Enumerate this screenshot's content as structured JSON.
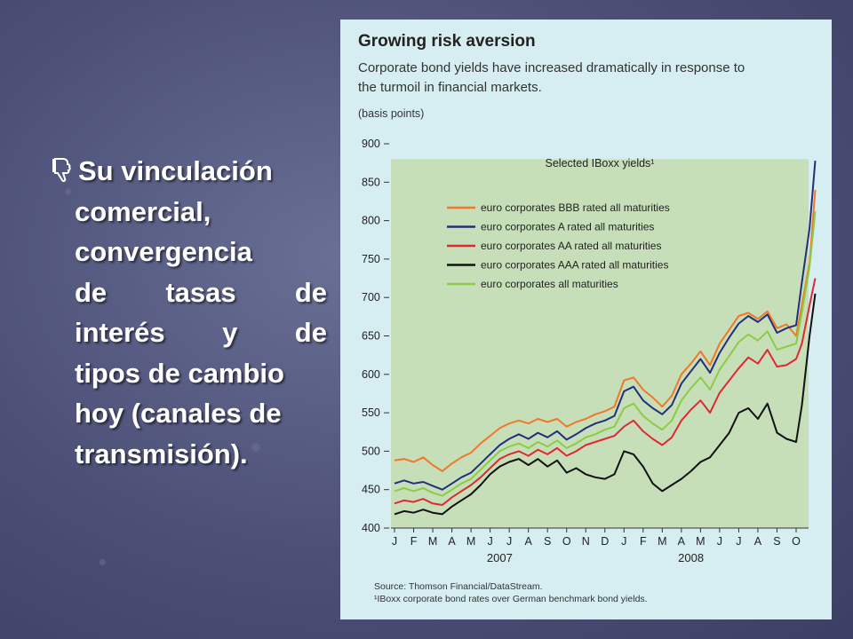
{
  "slide": {
    "bullet_icon": "thumbs-down-icon",
    "bullet_lines": [
      "Su vinculación",
      "comercial,",
      "convergencia",
      "de tasas de",
      "interés y de",
      "tipos de cambio",
      "hoy (canales de",
      "transmisión)."
    ]
  },
  "chart_data": {
    "type": "line",
    "title": "Growing risk aversion",
    "subtitle": "Corporate bond yields have increased dramatically in response to the turmoil in financial markets.",
    "ylabel": "(basis points)",
    "inner_title": "Selected IBoxx yields¹",
    "ylim": [
      400,
      900
    ],
    "yticks": [
      400,
      450,
      500,
      550,
      600,
      650,
      700,
      750,
      800,
      850,
      900
    ],
    "x_months": [
      "J",
      "F",
      "M",
      "A",
      "M",
      "J",
      "J",
      "A",
      "S",
      "O",
      "N",
      "D",
      "J",
      "F",
      "M",
      "A",
      "M",
      "J",
      "J",
      "A",
      "S",
      "O"
    ],
    "x_years": [
      {
        "label": "2007",
        "month_index": 5.5
      },
      {
        "label": "2008",
        "month_index": 15.5
      }
    ],
    "x_range": [
      0,
      21
    ],
    "source": "Source: Thomson Financial/DataStream.",
    "footnote": "¹IBoxx corporate bond rates over German benchmark bond yields.",
    "series": [
      {
        "name": "euro corporates BBB rated all maturities",
        "color": "#f07828",
        "points": [
          [
            0,
            488
          ],
          [
            0.5,
            490
          ],
          [
            1,
            486
          ],
          [
            1.5,
            492
          ],
          [
            2,
            482
          ],
          [
            2.5,
            474
          ],
          [
            3,
            484
          ],
          [
            3.5,
            492
          ],
          [
            4,
            498
          ],
          [
            4.5,
            510
          ],
          [
            5,
            520
          ],
          [
            5.5,
            530
          ],
          [
            6,
            536
          ],
          [
            6.5,
            540
          ],
          [
            7,
            536
          ],
          [
            7.5,
            542
          ],
          [
            8,
            538
          ],
          [
            8.5,
            542
          ],
          [
            9,
            532
          ],
          [
            9.5,
            538
          ],
          [
            10,
            542
          ],
          [
            10.5,
            548
          ],
          [
            11,
            552
          ],
          [
            11.5,
            558
          ],
          [
            12,
            592
          ],
          [
            12.5,
            596
          ],
          [
            13,
            580
          ],
          [
            13.5,
            570
          ],
          [
            14,
            558
          ],
          [
            14.5,
            572
          ],
          [
            15,
            600
          ],
          [
            15.5,
            614
          ],
          [
            16,
            630
          ],
          [
            16.5,
            612
          ],
          [
            17,
            640
          ],
          [
            17.5,
            658
          ],
          [
            18,
            676
          ],
          [
            18.5,
            680
          ],
          [
            19,
            672
          ],
          [
            19.5,
            682
          ],
          [
            20,
            660
          ],
          [
            20.5,
            665
          ],
          [
            21,
            650
          ],
          [
            21.3,
            690
          ],
          [
            21.7,
            745
          ],
          [
            22,
            840
          ]
        ]
      },
      {
        "name": "euro corporates A rated all maturities",
        "color": "#22307a",
        "points": [
          [
            0,
            458
          ],
          [
            0.5,
            462
          ],
          [
            1,
            458
          ],
          [
            1.5,
            460
          ],
          [
            2,
            455
          ],
          [
            2.5,
            450
          ],
          [
            3,
            458
          ],
          [
            3.5,
            466
          ],
          [
            4,
            472
          ],
          [
            4.5,
            484
          ],
          [
            5,
            496
          ],
          [
            5.5,
            508
          ],
          [
            6,
            516
          ],
          [
            6.5,
            522
          ],
          [
            7,
            516
          ],
          [
            7.5,
            524
          ],
          [
            8,
            518
          ],
          [
            8.5,
            526
          ],
          [
            9,
            515
          ],
          [
            9.5,
            522
          ],
          [
            10,
            530
          ],
          [
            10.5,
            536
          ],
          [
            11,
            540
          ],
          [
            11.5,
            546
          ],
          [
            12,
            578
          ],
          [
            12.5,
            584
          ],
          [
            13,
            566
          ],
          [
            13.5,
            556
          ],
          [
            14,
            548
          ],
          [
            14.5,
            560
          ],
          [
            15,
            588
          ],
          [
            15.5,
            604
          ],
          [
            16,
            620
          ],
          [
            16.5,
            602
          ],
          [
            17,
            628
          ],
          [
            17.5,
            648
          ],
          [
            18,
            666
          ],
          [
            18.5,
            676
          ],
          [
            19,
            668
          ],
          [
            19.5,
            678
          ],
          [
            20,
            654
          ],
          [
            20.5,
            660
          ],
          [
            21,
            664
          ],
          [
            21.3,
            720
          ],
          [
            21.7,
            790
          ],
          [
            22,
            878
          ]
        ]
      },
      {
        "name": "euro corporates AA rated all maturities",
        "color": "#e02830",
        "points": [
          [
            0,
            432
          ],
          [
            0.5,
            436
          ],
          [
            1,
            434
          ],
          [
            1.5,
            438
          ],
          [
            2,
            432
          ],
          [
            2.5,
            430
          ],
          [
            3,
            440
          ],
          [
            3.5,
            448
          ],
          [
            4,
            456
          ],
          [
            4.5,
            466
          ],
          [
            5,
            478
          ],
          [
            5.5,
            490
          ],
          [
            6,
            496
          ],
          [
            6.5,
            500
          ],
          [
            7,
            494
          ],
          [
            7.5,
            502
          ],
          [
            8,
            496
          ],
          [
            8.5,
            504
          ],
          [
            9,
            494
          ],
          [
            9.5,
            500
          ],
          [
            10,
            508
          ],
          [
            10.5,
            512
          ],
          [
            11,
            516
          ],
          [
            11.5,
            520
          ],
          [
            12,
            532
          ],
          [
            12.5,
            540
          ],
          [
            13,
            526
          ],
          [
            13.5,
            516
          ],
          [
            14,
            508
          ],
          [
            14.5,
            518
          ],
          [
            15,
            540
          ],
          [
            15.5,
            554
          ],
          [
            16,
            566
          ],
          [
            16.5,
            550
          ],
          [
            17,
            576
          ],
          [
            17.5,
            592
          ],
          [
            18,
            608
          ],
          [
            18.5,
            622
          ],
          [
            19,
            614
          ],
          [
            19.5,
            632
          ],
          [
            20,
            610
          ],
          [
            20.5,
            612
          ],
          [
            21,
            620
          ],
          [
            21.3,
            640
          ],
          [
            21.7,
            690
          ],
          [
            22,
            725
          ]
        ]
      },
      {
        "name": "euro corporates AAA rated all maturities",
        "color": "#111111",
        "points": [
          [
            0,
            418
          ],
          [
            0.5,
            422
          ],
          [
            1,
            420
          ],
          [
            1.5,
            424
          ],
          [
            2,
            420
          ],
          [
            2.5,
            418
          ],
          [
            3,
            428
          ],
          [
            3.5,
            436
          ],
          [
            4,
            444
          ],
          [
            4.5,
            456
          ],
          [
            5,
            470
          ],
          [
            5.5,
            480
          ],
          [
            6,
            486
          ],
          [
            6.5,
            490
          ],
          [
            7,
            482
          ],
          [
            7.5,
            490
          ],
          [
            8,
            480
          ],
          [
            8.5,
            488
          ],
          [
            9,
            472
          ],
          [
            9.5,
            478
          ],
          [
            10,
            470
          ],
          [
            10.5,
            466
          ],
          [
            11,
            464
          ],
          [
            11.5,
            470
          ],
          [
            12,
            500
          ],
          [
            12.5,
            496
          ],
          [
            13,
            480
          ],
          [
            13.5,
            458
          ],
          [
            14,
            448
          ],
          [
            14.5,
            456
          ],
          [
            15,
            464
          ],
          [
            15.5,
            474
          ],
          [
            16,
            486
          ],
          [
            16.5,
            492
          ],
          [
            17,
            508
          ],
          [
            17.5,
            524
          ],
          [
            18,
            550
          ],
          [
            18.5,
            556
          ],
          [
            19,
            542
          ],
          [
            19.5,
            562
          ],
          [
            20,
            524
          ],
          [
            20.5,
            516
          ],
          [
            21,
            512
          ],
          [
            21.3,
            560
          ],
          [
            21.7,
            650
          ],
          [
            22,
            705
          ]
        ]
      },
      {
        "name": "euro corporates all maturities",
        "color": "#8ccc44",
        "points": [
          [
            0,
            448
          ],
          [
            0.5,
            452
          ],
          [
            1,
            448
          ],
          [
            1.5,
            452
          ],
          [
            2,
            446
          ],
          [
            2.5,
            442
          ],
          [
            3,
            450
          ],
          [
            3.5,
            458
          ],
          [
            4,
            464
          ],
          [
            4.5,
            476
          ],
          [
            5,
            488
          ],
          [
            5.5,
            500
          ],
          [
            6,
            506
          ],
          [
            6.5,
            510
          ],
          [
            7,
            504
          ],
          [
            7.5,
            512
          ],
          [
            8,
            506
          ],
          [
            8.5,
            514
          ],
          [
            9,
            504
          ],
          [
            9.5,
            510
          ],
          [
            10,
            518
          ],
          [
            10.5,
            522
          ],
          [
            11,
            528
          ],
          [
            11.5,
            532
          ],
          [
            12,
            556
          ],
          [
            12.5,
            562
          ],
          [
            13,
            546
          ],
          [
            13.5,
            536
          ],
          [
            14,
            528
          ],
          [
            14.5,
            540
          ],
          [
            15,
            566
          ],
          [
            15.5,
            582
          ],
          [
            16,
            596
          ],
          [
            16.5,
            580
          ],
          [
            17,
            606
          ],
          [
            17.5,
            624
          ],
          [
            18,
            642
          ],
          [
            18.5,
            652
          ],
          [
            19,
            644
          ],
          [
            19.5,
            656
          ],
          [
            20,
            632
          ],
          [
            20.5,
            636
          ],
          [
            21,
            640
          ],
          [
            21.3,
            680
          ],
          [
            21.7,
            740
          ],
          [
            22,
            812
          ]
        ]
      }
    ]
  }
}
